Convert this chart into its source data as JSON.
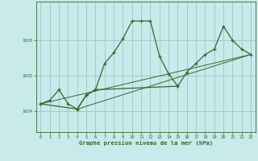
{
  "title": "Graphe pression niveau de la mer (hPa)",
  "bg_color": "#c8eaea",
  "grid_color": "#a0cccc",
  "line_color": "#2d6b2d",
  "marker_color": "#2d6b2d",
  "xlim": [
    -0.5,
    23.5
  ],
  "ylim": [
    1023.4,
    1027.1
  ],
  "xticks": [
    0,
    1,
    2,
    3,
    4,
    5,
    6,
    7,
    8,
    9,
    10,
    11,
    12,
    13,
    14,
    15,
    16,
    17,
    18,
    19,
    20,
    21,
    22,
    23
  ],
  "yticks": [
    1024,
    1025,
    1026
  ],
  "series1": [
    [
      0,
      1024.2
    ],
    [
      1,
      1024.3
    ],
    [
      2,
      1024.6
    ],
    [
      3,
      1024.2
    ],
    [
      4,
      1024.05
    ],
    [
      5,
      1024.45
    ],
    [
      6,
      1024.6
    ],
    [
      7,
      1025.35
    ],
    [
      8,
      1025.65
    ],
    [
      9,
      1026.05
    ],
    [
      10,
      1026.55
    ],
    [
      11,
      1026.55
    ],
    [
      12,
      1026.55
    ],
    [
      13,
      1025.55
    ],
    [
      14,
      1025.05
    ],
    [
      15,
      1024.7
    ]
  ],
  "series2": [
    [
      0,
      1024.2
    ],
    [
      4,
      1024.05
    ],
    [
      5,
      1024.45
    ],
    [
      6,
      1024.6
    ],
    [
      15,
      1024.7
    ],
    [
      16,
      1025.1
    ],
    [
      17,
      1025.35
    ],
    [
      18,
      1025.6
    ],
    [
      19,
      1025.75
    ],
    [
      20,
      1026.4
    ],
    [
      21,
      1026.0
    ],
    [
      22,
      1025.75
    ],
    [
      23,
      1025.6
    ]
  ],
  "series3": [
    [
      0,
      1024.2
    ],
    [
      4,
      1024.05
    ],
    [
      23,
      1025.6
    ]
  ],
  "series4": [
    [
      4,
      1024.05
    ],
    [
      5,
      1024.45
    ],
    [
      15,
      1024.7
    ],
    [
      16,
      1025.1
    ],
    [
      20,
      1026.4
    ],
    [
      23,
      1025.6
    ]
  ]
}
